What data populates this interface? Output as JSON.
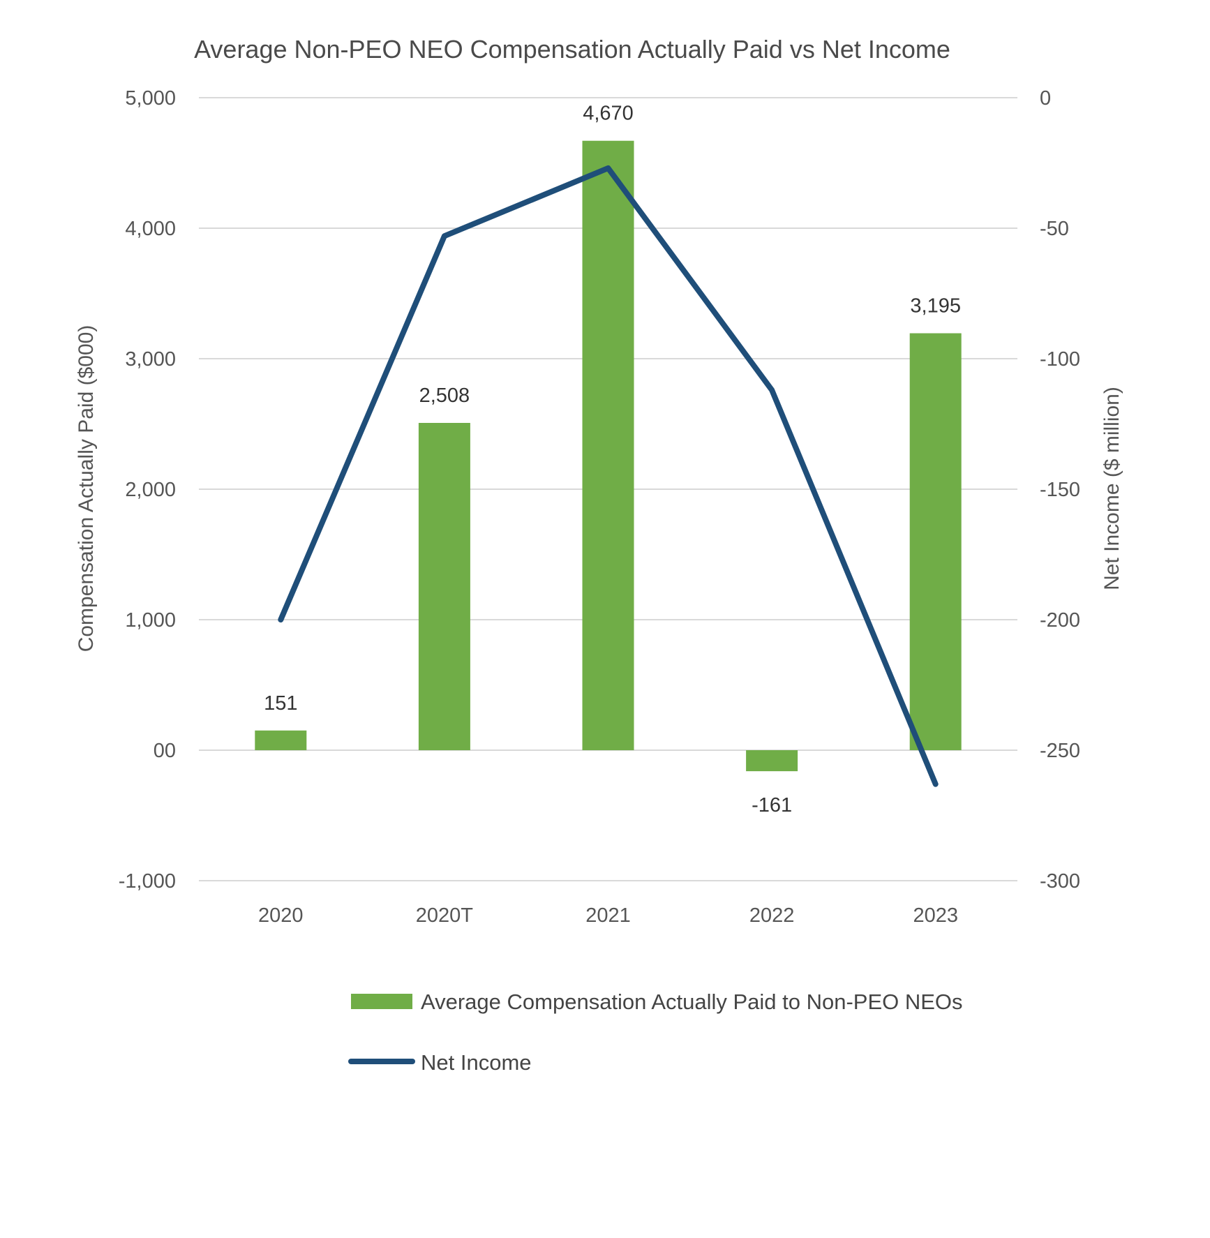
{
  "chart_data": {
    "type": "bar+line",
    "title": "Average Non-PEO NEO Compensation Actually Paid vs Net Income",
    "categories": [
      "2020",
      "2020T",
      "2021",
      "2022",
      "2023"
    ],
    "left_axis": {
      "label": "Compensation Actually Paid ($000)",
      "range": [
        -1000,
        5000
      ],
      "ticks": [
        5000,
        4000,
        3000,
        2000,
        1000,
        0,
        -1000
      ],
      "tick_labels": [
        "5,000",
        "4,000",
        "3,000",
        "2,000",
        "1,000",
        "00",
        "-1,000"
      ]
    },
    "right_axis": {
      "label": "Net Income ($ million)",
      "range": [
        -300,
        0
      ],
      "ticks": [
        0,
        -50,
        -100,
        -150,
        -200,
        -250,
        -300
      ],
      "tick_labels": [
        "0",
        "-50",
        "-100",
        "-150",
        "-200",
        "-250",
        "-300"
      ]
    },
    "series": [
      {
        "name": "Average Compensation Actually Paid to Non-PEO NEOs",
        "type": "bar",
        "axis": "left",
        "color": "#70ad47",
        "values": [
          151,
          2508,
          4670,
          -161,
          3195
        ],
        "labels": [
          "151",
          "2,508",
          "4,670",
          "-161",
          "3,195"
        ]
      },
      {
        "name": "Net Income",
        "type": "line",
        "axis": "right",
        "color": "#1f4e79",
        "values": [
          -200,
          -53,
          -27,
          -112,
          -263
        ]
      }
    ],
    "grid": true,
    "legend_position": "bottom"
  }
}
